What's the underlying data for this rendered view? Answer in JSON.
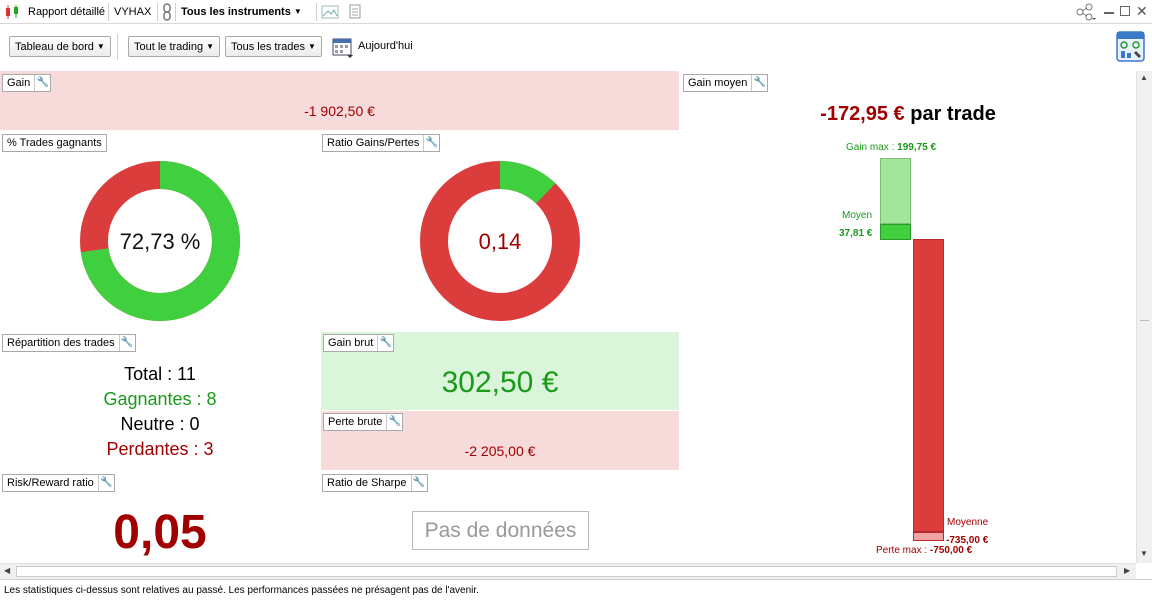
{
  "titlebar": {
    "report_label": "Rapport détaillé",
    "account": "VYHAX",
    "instruments_label": "Tous les instruments"
  },
  "toolbar": {
    "dashboard_label": "Tableau de bord",
    "trading_label": "Tout le trading",
    "trades_label": "Tous les trades",
    "date_label": "Aujourd'hui"
  },
  "panels": {
    "gain": {
      "label": "Gain",
      "value": "-1 902,50 €"
    },
    "win_pct": {
      "label": "% Trades gagnants",
      "value": "72,73 %",
      "fraction": 0.7273
    },
    "ratio": {
      "label": "Ratio Gains/Pertes",
      "value": "0,14",
      "fraction": 0.122
    },
    "repartition": {
      "label": "Répartition des trades",
      "total": "Total : 11",
      "gagnantes": "Gagnantes : 8",
      "neutre": "Neutre : 0",
      "perdantes": "Perdantes : 3"
    },
    "gain_brut": {
      "label": "Gain brut",
      "value": "302,50 €"
    },
    "perte_brute": {
      "label": "Perte brute",
      "value": "-2 205,00 €"
    },
    "risk_reward": {
      "label": "Risk/Reward ratio",
      "value": "0,05"
    },
    "sharpe": {
      "label": "Ratio de Sharpe",
      "no_data": "Pas de données"
    },
    "gain_moyen": {
      "label": "Gain moyen",
      "value": "-172,95 €",
      "suffix": " par trade",
      "gain_max_label": "Gain max : ",
      "gain_max_value": "199,75 €",
      "moyen_label": "Moyen",
      "moyen_value": "37,81 €",
      "moyenne_label": "Moyenne",
      "moyenne_value": "-735,00 €",
      "perte_max_label": "Perte max : ",
      "perte_max_value": "-750,00 €"
    }
  },
  "footer": "Les statistiques ci-dessus sont relatives au passé. Les performances passées ne présagent pas de l'avenir.",
  "colors": {
    "green": "#3fcf3f",
    "red": "#db3d3d",
    "dark_red": "#a00000",
    "dark_green": "#1a9a1a"
  }
}
